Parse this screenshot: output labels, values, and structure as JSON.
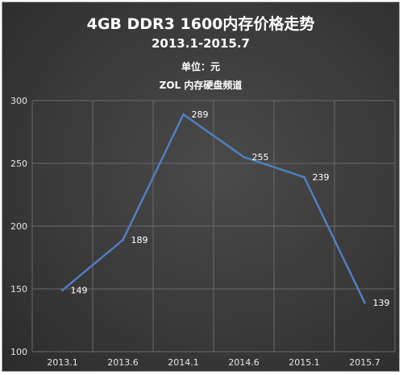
{
  "header": {
    "title": "4GB DDR3 1600内存价格走势",
    "subtitle": "2013.1-2015.7",
    "unit": "单位：元",
    "source": "ZOL 内存硬盘频道"
  },
  "chart_data": {
    "type": "line",
    "title": "4GB DDR3 1600内存价格走势",
    "subtitle": "2013.1-2015.7",
    "xlabel": "",
    "ylabel": "单位：元",
    "categories": [
      "2013.1",
      "2013.6",
      "2014.1",
      "2014.6",
      "2015.1",
      "2015.7"
    ],
    "series": [
      {
        "values": [
          149,
          189,
          289,
          255,
          239,
          139
        ],
        "color": "#4f7fc0"
      }
    ],
    "ylim": [
      100,
      300
    ],
    "yticks": [
      "300",
      "250",
      "200",
      "150",
      "100"
    ],
    "grid": true,
    "legend": "none",
    "data_labels": [
      "149",
      "189",
      "289",
      "255",
      "239",
      "139"
    ]
  }
}
